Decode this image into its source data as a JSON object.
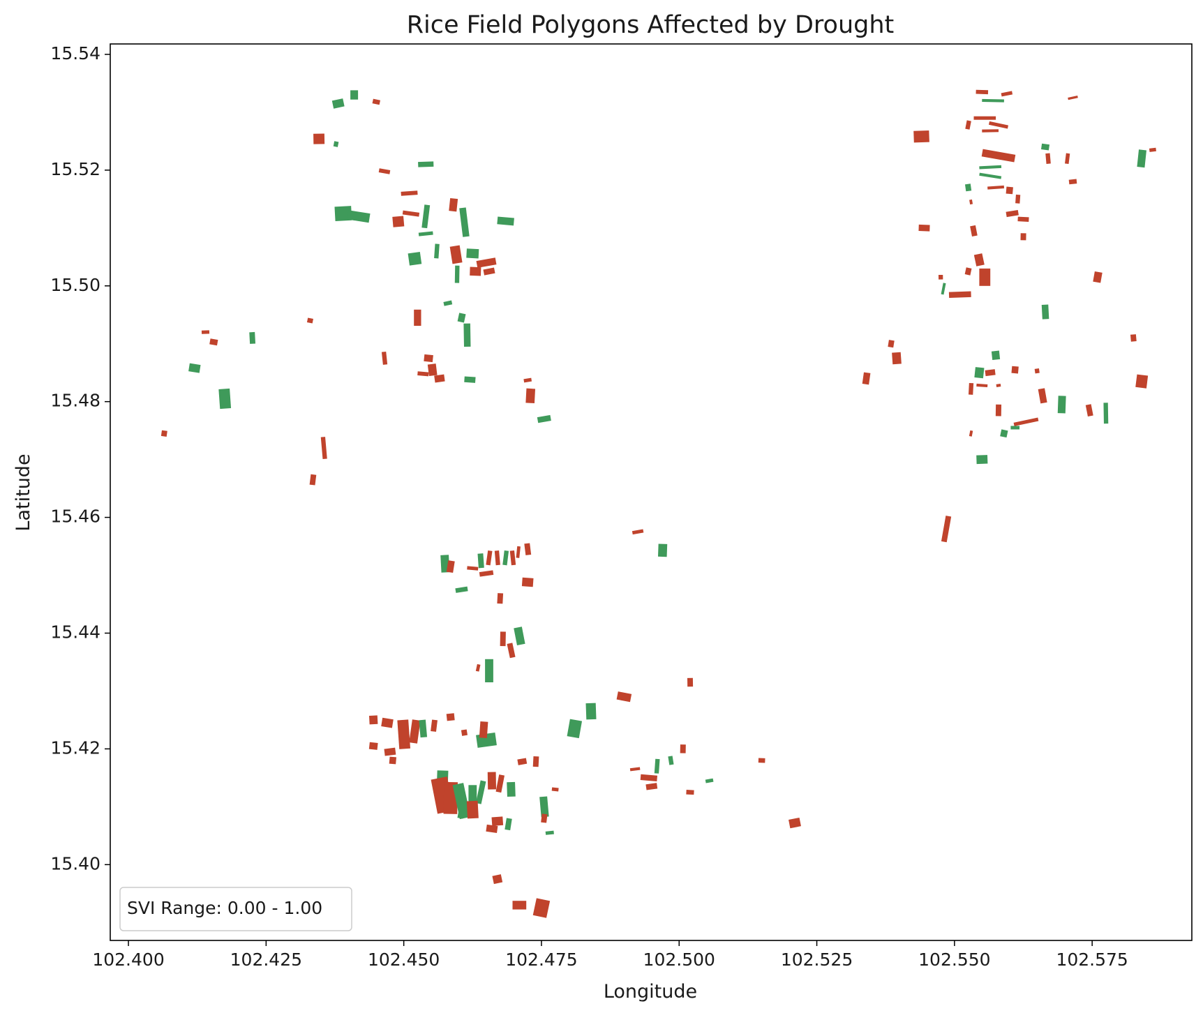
{
  "chart_data": {
    "type": "map",
    "title": "Rice Field Polygons Affected by Drought",
    "xlabel": "Longitude",
    "ylabel": "Latitude",
    "xlim": [
      102.3967,
      102.5931
    ],
    "ylim": [
      15.3869,
      15.5418
    ],
    "xticks": [
      "102.400",
      "102.425",
      "102.450",
      "102.475",
      "102.500",
      "102.525",
      "102.550",
      "102.575"
    ],
    "yticks": [
      "15.40",
      "15.42",
      "15.44",
      "15.46",
      "15.48",
      "15.50",
      "15.52",
      "15.54"
    ],
    "grid": false,
    "legend": {
      "position": "lower-left",
      "text": "SVI Range: 0.00 - 1.00"
    },
    "colors": {
      "affected": "#c0432c",
      "not_affected": "#3f9a5a"
    },
    "fields": [
      [
        102.4381,
        15.5315,
        0.002,
        0.0014,
        "g"
      ],
      [
        102.441,
        15.533,
        0.0014,
        0.0016,
        "g"
      ],
      [
        102.445,
        15.5318,
        0.0013,
        0.0008,
        "r"
      ],
      [
        102.4346,
        15.5254,
        0.002,
        0.0018,
        "r"
      ],
      [
        102.4377,
        15.5245,
        0.0008,
        0.0009,
        "g"
      ],
      [
        102.454,
        15.521,
        0.0028,
        0.0009,
        "g"
      ],
      [
        102.4465,
        15.5198,
        0.002,
        0.0007,
        "r"
      ],
      [
        102.439,
        15.5125,
        0.003,
        0.0025,
        "g"
      ],
      [
        102.4418,
        15.512,
        0.004,
        0.0016,
        "g"
      ],
      [
        102.451,
        15.516,
        0.003,
        0.0007,
        "r"
      ],
      [
        102.4513,
        15.5125,
        0.003,
        0.0007,
        "r"
      ],
      [
        102.449,
        15.5111,
        0.002,
        0.0018,
        "r"
      ],
      [
        102.454,
        15.512,
        0.001,
        0.004,
        "g"
      ],
      [
        102.454,
        15.509,
        0.0026,
        0.0006,
        "g"
      ],
      [
        102.459,
        15.514,
        0.0014,
        0.0022,
        "r"
      ],
      [
        102.461,
        15.511,
        0.0012,
        0.005,
        "g"
      ],
      [
        102.4685,
        15.5112,
        0.003,
        0.0013,
        "g"
      ],
      [
        102.452,
        15.5047,
        0.0022,
        0.0021,
        "g"
      ],
      [
        102.456,
        15.506,
        0.0008,
        0.0025,
        "g"
      ],
      [
        102.4595,
        15.5054,
        0.0018,
        0.003,
        "r"
      ],
      [
        102.4625,
        15.5056,
        0.0022,
        0.0016,
        "g"
      ],
      [
        102.465,
        15.504,
        0.0035,
        0.0012,
        "r"
      ],
      [
        102.463,
        15.5025,
        0.002,
        0.0015,
        "r"
      ],
      [
        102.4655,
        15.5025,
        0.002,
        0.001,
        "r"
      ],
      [
        102.4597,
        15.502,
        0.0008,
        0.003,
        "g"
      ],
      [
        102.458,
        15.497,
        0.0015,
        0.0007,
        "g"
      ],
      [
        102.4525,
        15.4945,
        0.0013,
        0.0028,
        "r"
      ],
      [
        102.4605,
        15.4945,
        0.0012,
        0.0015,
        "g"
      ],
      [
        102.4615,
        15.4915,
        0.0012,
        0.004,
        "g"
      ],
      [
        102.433,
        15.494,
        0.001,
        0.0008,
        "r"
      ],
      [
        102.414,
        15.492,
        0.0014,
        0.0006,
        "r"
      ],
      [
        102.4155,
        15.4903,
        0.0014,
        0.001,
        "r"
      ],
      [
        102.4225,
        15.491,
        0.001,
        0.002,
        "g"
      ],
      [
        102.412,
        15.4858,
        0.002,
        0.0014,
        "g"
      ],
      [
        102.4175,
        15.4805,
        0.002,
        0.0034,
        "g"
      ],
      [
        102.4065,
        15.4745,
        0.001,
        0.001,
        "r"
      ],
      [
        102.4355,
        15.472,
        0.0008,
        0.0038,
        "r"
      ],
      [
        102.4335,
        15.4665,
        0.001,
        0.0018,
        "r"
      ],
      [
        102.4465,
        15.4875,
        0.0008,
        0.0022,
        "r"
      ],
      [
        102.4545,
        15.4875,
        0.0016,
        0.0012,
        "r"
      ],
      [
        102.4552,
        15.4855,
        0.0015,
        0.002,
        "r"
      ],
      [
        102.4535,
        15.4848,
        0.002,
        0.0007,
        "r"
      ],
      [
        102.4565,
        15.484,
        0.0018,
        0.0012,
        "r"
      ],
      [
        102.462,
        15.4838,
        0.002,
        0.001,
        "g"
      ],
      [
        102.4725,
        15.4837,
        0.0014,
        0.0006,
        "r"
      ],
      [
        102.473,
        15.481,
        0.0016,
        0.0025,
        "r"
      ],
      [
        102.4755,
        15.477,
        0.0024,
        0.001,
        "g"
      ],
      [
        102.555,
        15.5335,
        0.0022,
        0.0007,
        "r"
      ],
      [
        102.5595,
        15.5332,
        0.002,
        0.0006,
        "r"
      ],
      [
        102.557,
        15.532,
        0.004,
        0.0005,
        "g"
      ],
      [
        102.5715,
        15.5325,
        0.0018,
        0.0004,
        "r"
      ],
      [
        102.5555,
        15.529,
        0.004,
        0.0006,
        "r"
      ],
      [
        102.558,
        15.5278,
        0.0035,
        0.0006,
        "r"
      ],
      [
        102.5565,
        15.5268,
        0.003,
        0.0005,
        "r"
      ],
      [
        102.5525,
        15.5278,
        0.0008,
        0.0015,
        "r"
      ],
      [
        102.544,
        15.5258,
        0.0028,
        0.002,
        "r"
      ],
      [
        102.558,
        15.5225,
        0.006,
        0.0013,
        "r"
      ],
      [
        102.5565,
        15.5205,
        0.004,
        0.0005,
        "g"
      ],
      [
        102.5565,
        15.519,
        0.004,
        0.0005,
        "g"
      ],
      [
        102.5575,
        15.517,
        0.003,
        0.0005,
        "r"
      ],
      [
        102.5665,
        15.524,
        0.0014,
        0.001,
        "g"
      ],
      [
        102.567,
        15.522,
        0.0008,
        0.0018,
        "r"
      ],
      [
        102.5705,
        15.522,
        0.0007,
        0.0018,
        "r"
      ],
      [
        102.5715,
        15.518,
        0.0014,
        0.0008,
        "r"
      ],
      [
        102.584,
        15.522,
        0.0014,
        0.003,
        "g"
      ],
      [
        102.586,
        15.5235,
        0.0012,
        0.0006,
        "r"
      ],
      [
        102.56,
        15.5165,
        0.0012,
        0.0012,
        "r"
      ],
      [
        102.5525,
        15.517,
        0.001,
        0.0012,
        "g"
      ],
      [
        102.5615,
        15.515,
        0.0008,
        0.0015,
        "r"
      ],
      [
        102.5605,
        15.5125,
        0.0022,
        0.0009,
        "r"
      ],
      [
        102.5625,
        15.5115,
        0.002,
        0.0008,
        "r"
      ],
      [
        102.553,
        15.5145,
        0.0005,
        0.0008,
        "r"
      ],
      [
        102.5445,
        15.51,
        0.002,
        0.0011,
        "r"
      ],
      [
        102.5535,
        15.5095,
        0.001,
        0.0018,
        "r"
      ],
      [
        102.5625,
        15.5085,
        0.001,
        0.0012,
        "r"
      ],
      [
        102.5545,
        15.5045,
        0.0015,
        0.002,
        "r"
      ],
      [
        102.5555,
        15.5015,
        0.002,
        0.003,
        "r"
      ],
      [
        102.5525,
        15.5025,
        0.001,
        0.0012,
        "r"
      ],
      [
        102.5475,
        15.5015,
        0.0008,
        0.0008,
        "r"
      ],
      [
        102.548,
        15.4995,
        0.0005,
        0.002,
        "g"
      ],
      [
        102.551,
        15.4985,
        0.004,
        0.001,
        "r"
      ],
      [
        102.576,
        15.5015,
        0.0014,
        0.0018,
        "r"
      ],
      [
        102.5665,
        15.4955,
        0.0012,
        0.0025,
        "g"
      ],
      [
        102.5385,
        15.49,
        0.001,
        0.0012,
        "r"
      ],
      [
        102.5395,
        15.4875,
        0.0016,
        0.002,
        "r"
      ],
      [
        102.534,
        15.484,
        0.0012,
        0.002,
        "r"
      ],
      [
        102.5825,
        15.491,
        0.001,
        0.0012,
        "r"
      ],
      [
        102.584,
        15.4835,
        0.002,
        0.0022,
        "r"
      ],
      [
        102.5575,
        15.488,
        0.0014,
        0.0015,
        "g"
      ],
      [
        102.5545,
        15.485,
        0.0016,
        0.0018,
        "g"
      ],
      [
        102.5565,
        15.485,
        0.0018,
        0.001,
        "r"
      ],
      [
        102.561,
        15.4855,
        0.0012,
        0.0012,
        "r"
      ],
      [
        102.565,
        15.4853,
        0.0008,
        0.0008,
        "r"
      ],
      [
        102.555,
        15.4828,
        0.002,
        0.0005,
        "r"
      ],
      [
        102.558,
        15.4828,
        0.0008,
        0.0005,
        "r"
      ],
      [
        102.553,
        15.4822,
        0.0008,
        0.002,
        "r"
      ],
      [
        102.566,
        15.481,
        0.0012,
        0.0025,
        "r"
      ],
      [
        102.5695,
        15.4795,
        0.0014,
        0.003,
        "g"
      ],
      [
        102.5745,
        15.4785,
        0.001,
        0.002,
        "r"
      ],
      [
        102.558,
        15.4785,
        0.001,
        0.002,
        "r"
      ],
      [
        102.563,
        15.4765,
        0.0045,
        0.0006,
        "r"
      ],
      [
        102.561,
        15.4755,
        0.0016,
        0.0006,
        "g"
      ],
      [
        102.559,
        15.4745,
        0.0012,
        0.0012,
        "g"
      ],
      [
        102.5775,
        15.478,
        0.0008,
        0.0036,
        "g"
      ],
      [
        102.553,
        15.4745,
        0.0005,
        0.001,
        "r"
      ],
      [
        102.555,
        15.47,
        0.002,
        0.0015,
        "g"
      ],
      [
        102.5485,
        15.458,
        0.001,
        0.0045,
        "r"
      ],
      [
        102.4575,
        15.452,
        0.0015,
        0.003,
        "g"
      ],
      [
        102.4585,
        15.4515,
        0.0012,
        0.002,
        "r"
      ],
      [
        102.464,
        15.4525,
        0.001,
        0.0025,
        "g"
      ],
      [
        102.4655,
        15.453,
        0.0008,
        0.0025,
        "r"
      ],
      [
        102.467,
        15.453,
        0.0008,
        0.0025,
        "r"
      ],
      [
        102.4685,
        15.453,
        0.0008,
        0.0025,
        "g"
      ],
      [
        102.4698,
        15.453,
        0.0008,
        0.0025,
        "r"
      ],
      [
        102.4708,
        15.454,
        0.0006,
        0.002,
        "r"
      ],
      [
        102.4725,
        15.4545,
        0.001,
        0.002,
        "r"
      ],
      [
        102.4625,
        15.4512,
        0.002,
        0.0006,
        "r"
      ],
      [
        102.465,
        15.4503,
        0.0025,
        0.0008,
        "r"
      ],
      [
        102.4725,
        15.4488,
        0.002,
        0.0015,
        "r"
      ],
      [
        102.4605,
        15.4475,
        0.0022,
        0.0008,
        "g"
      ],
      [
        102.4675,
        15.446,
        0.001,
        0.0018,
        "r"
      ],
      [
        102.4925,
        15.4575,
        0.002,
        0.0006,
        "r"
      ],
      [
        102.497,
        15.4543,
        0.0016,
        0.0022,
        "g"
      ],
      [
        102.471,
        15.4395,
        0.0015,
        0.003,
        "g"
      ],
      [
        102.468,
        15.439,
        0.001,
        0.0025,
        "r"
      ],
      [
        102.4695,
        15.437,
        0.001,
        0.0025,
        "r"
      ],
      [
        102.4655,
        15.4335,
        0.0015,
        0.004,
        "g"
      ],
      [
        102.4635,
        15.434,
        0.0006,
        0.0012,
        "r"
      ],
      [
        102.502,
        15.4315,
        0.001,
        0.0015,
        "r"
      ],
      [
        102.49,
        15.429,
        0.0025,
        0.0014,
        "r"
      ],
      [
        102.484,
        15.4265,
        0.0018,
        0.0028,
        "g"
      ],
      [
        102.481,
        15.4235,
        0.0022,
        0.003,
        "g"
      ],
      [
        102.4445,
        15.425,
        0.0015,
        0.0015,
        "r"
      ],
      [
        102.447,
        15.4245,
        0.002,
        0.0015,
        "r"
      ],
      [
        102.45,
        15.4225,
        0.002,
        0.005,
        "r"
      ],
      [
        102.452,
        15.423,
        0.0015,
        0.004,
        "r"
      ],
      [
        102.4535,
        15.4235,
        0.0012,
        0.003,
        "g"
      ],
      [
        102.4555,
        15.424,
        0.001,
        0.002,
        "r"
      ],
      [
        102.4585,
        15.4255,
        0.0014,
        0.0012,
        "r"
      ],
      [
        102.4445,
        15.4205,
        0.0015,
        0.0012,
        "r"
      ],
      [
        102.4475,
        15.4195,
        0.002,
        0.0012,
        "r"
      ],
      [
        102.448,
        15.418,
        0.0012,
        0.0012,
        "r"
      ],
      [
        102.465,
        15.4215,
        0.0035,
        0.0022,
        "g"
      ],
      [
        102.4645,
        15.4233,
        0.0014,
        0.0028,
        "r"
      ],
      [
        102.461,
        15.4228,
        0.001,
        0.001,
        "r"
      ],
      [
        102.474,
        15.4178,
        0.001,
        0.0018,
        "r"
      ],
      [
        102.4715,
        15.4178,
        0.0016,
        0.001,
        "r"
      ],
      [
        102.457,
        15.414,
        0.002,
        0.0045,
        "g"
      ],
      [
        102.457,
        15.412,
        0.003,
        0.006,
        "r"
      ],
      [
        102.4585,
        15.4115,
        0.0025,
        0.0055,
        "r"
      ],
      [
        102.4605,
        15.411,
        0.002,
        0.006,
        "g"
      ],
      [
        102.4625,
        15.4115,
        0.0015,
        0.0045,
        "g"
      ],
      [
        102.464,
        15.4125,
        0.001,
        0.004,
        "g"
      ],
      [
        102.466,
        15.4145,
        0.0015,
        0.003,
        "r"
      ],
      [
        102.4675,
        15.414,
        0.001,
        0.003,
        "r"
      ],
      [
        102.4695,
        15.413,
        0.0015,
        0.0025,
        "g"
      ],
      [
        102.4605,
        15.4095,
        0.001,
        0.003,
        "g"
      ],
      [
        102.4625,
        15.4095,
        0.002,
        0.003,
        "r"
      ],
      [
        102.469,
        15.407,
        0.001,
        0.002,
        "g"
      ],
      [
        102.467,
        15.4075,
        0.002,
        0.0015,
        "r"
      ],
      [
        102.466,
        15.4062,
        0.002,
        0.0012,
        "r"
      ],
      [
        102.4755,
        15.41,
        0.0014,
        0.0035,
        "g"
      ],
      [
        102.4755,
        15.408,
        0.001,
        0.0015,
        "r"
      ],
      [
        102.4765,
        15.4055,
        0.0015,
        0.0006,
        "g"
      ],
      [
        102.4775,
        15.413,
        0.0012,
        0.0006,
        "r"
      ],
      [
        102.492,
        15.4165,
        0.0018,
        0.0005,
        "r"
      ],
      [
        102.4945,
        15.415,
        0.003,
        0.001,
        "r"
      ],
      [
        102.495,
        15.4135,
        0.002,
        0.001,
        "r"
      ],
      [
        102.496,
        15.417,
        0.0008,
        0.0025,
        "g"
      ],
      [
        102.4985,
        15.418,
        0.0008,
        0.0015,
        "g"
      ],
      [
        102.502,
        15.4125,
        0.0014,
        0.0008,
        "r"
      ],
      [
        102.5055,
        15.4145,
        0.0014,
        0.0006,
        "g"
      ],
      [
        102.515,
        15.418,
        0.0012,
        0.0008,
        "r"
      ],
      [
        102.521,
        15.4072,
        0.002,
        0.0015,
        "r"
      ],
      [
        102.5007,
        15.42,
        0.001,
        0.0015,
        "r"
      ],
      [
        102.467,
        15.3975,
        0.0016,
        0.0014,
        "r"
      ],
      [
        102.471,
        15.393,
        0.0025,
        0.0015,
        "r"
      ],
      [
        102.475,
        15.3925,
        0.0025,
        0.003,
        "r"
      ]
    ]
  }
}
